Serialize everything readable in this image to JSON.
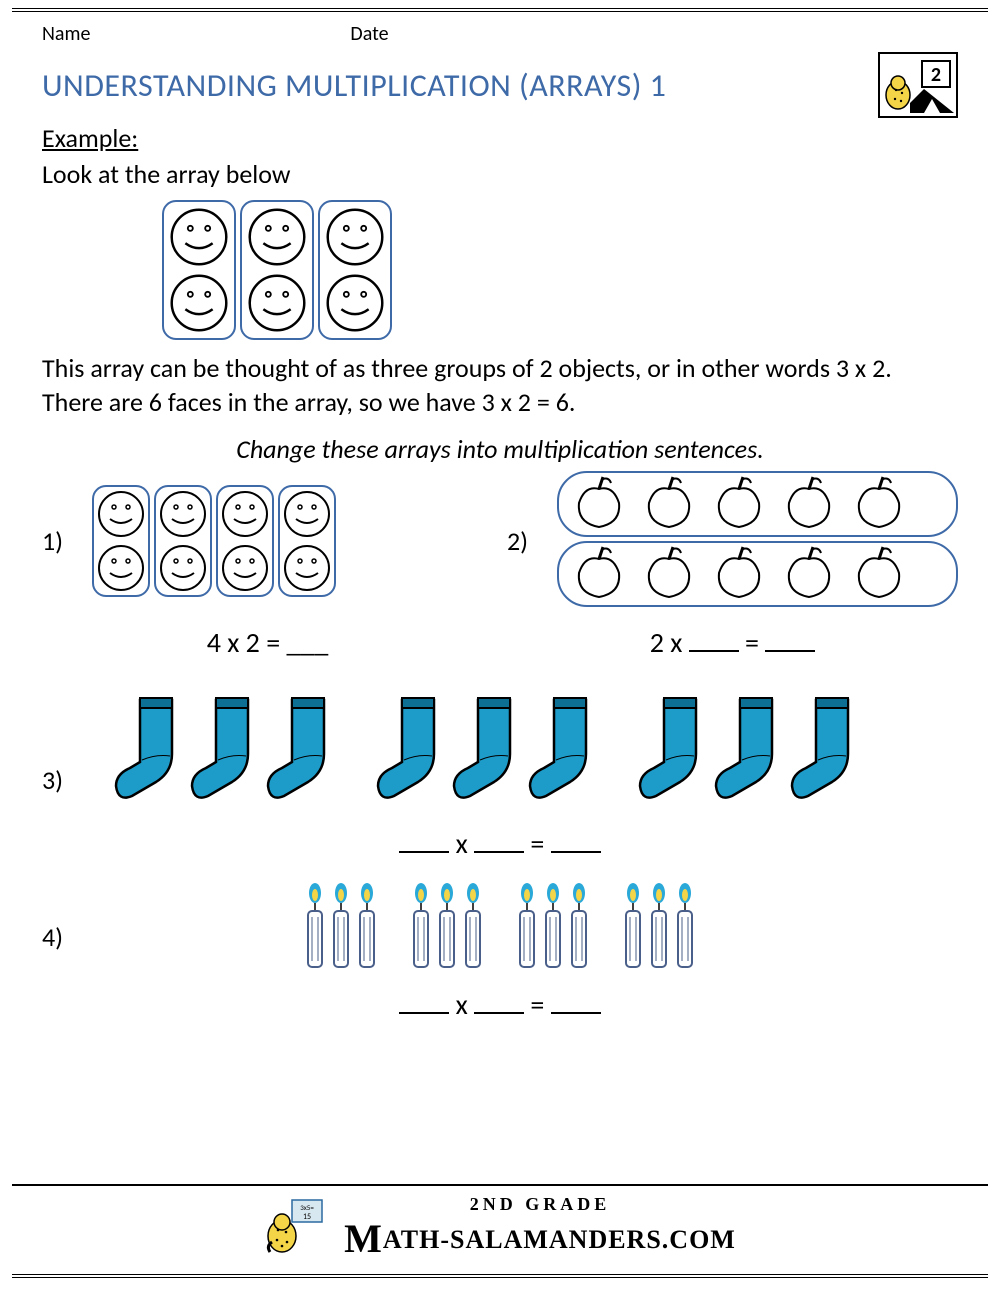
{
  "header": {
    "name_label": "Name",
    "date_label": "Date"
  },
  "title": "UNDERSTANDING MULTIPLICATION (ARRAYS) 1",
  "grade_badge": "2",
  "example_label": "Example:",
  "example_intro": "Look at the array below",
  "example_array": {
    "cols": 3,
    "rows": 2
  },
  "example_explain": "This array can be thought of as three groups of 2 objects, or in other words 3 x 2. There are 6 faces in the array, so we have 3 x 2 = 6.",
  "instruction": "Change these arrays into multiplication sentences.",
  "problems": {
    "p1": {
      "num": "1)",
      "cols": 4,
      "rows": 2,
      "equation": "4 x 2 = ___"
    },
    "p2": {
      "num": "2)",
      "rows": 2,
      "per_row": 5,
      "equation_prefix": "2 x ",
      "equation_mid": " = "
    },
    "p3": {
      "num": "3)",
      "groups": 3,
      "per_group": 3
    },
    "p4": {
      "num": "4)",
      "groups": 4,
      "per_group": 3
    }
  },
  "blank_eq": {
    "x": " x ",
    "eq": " = "
  },
  "colors": {
    "title": "#3e6aa8",
    "outline": "#3e6aa8",
    "sock": "#1e9cc9",
    "sock_dark": "#0c6f93",
    "candle_body": "#ffffff",
    "candle_outline": "#4a5f8a",
    "flame_outer": "#2aa8d8",
    "flame_inner": "#f5d548"
  },
  "footer": {
    "grade": "2ND GRADE",
    "site": "ATH-SALAMANDERS.COM"
  }
}
